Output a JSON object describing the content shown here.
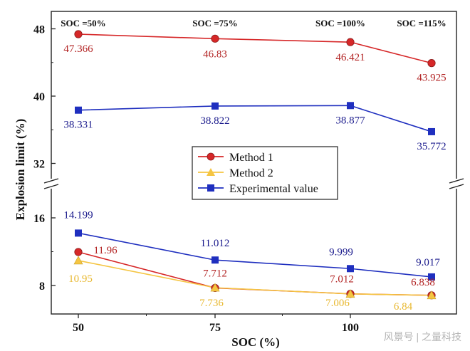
{
  "chart_data": {
    "type": "line",
    "xlabel": "SOC (%)",
    "ylabel": "Explosion limit (%)",
    "x": [
      50,
      75,
      100,
      115
    ],
    "x_ticks": [
      "50",
      "75",
      "100"
    ],
    "y_ticks_upper": [
      "48",
      "40",
      "32"
    ],
    "y_ticks_lower": [
      "16",
      "8"
    ],
    "axis_break": {
      "lower_range": [
        5,
        18
      ],
      "upper_range": [
        30,
        50
      ]
    },
    "soc_annotations": [
      "SOC =50%",
      "SOC =75%",
      "SOC =100%",
      "SOC =115%"
    ],
    "series": [
      {
        "name": "Method 1",
        "color": "#d62728",
        "marker": "circle",
        "upper_values": [
          47.366,
          46.83,
          46.421,
          43.925
        ],
        "upper_labels": [
          "47.366",
          "46.83",
          "46.421",
          "43.925"
        ],
        "lower_values": [
          11.96,
          7.712,
          7.012,
          6.838
        ],
        "lower_labels": [
          "11.96",
          "7.712",
          "7.012",
          "6.838"
        ]
      },
      {
        "name": "Method 2",
        "color": "#f5c542",
        "marker": "triangle",
        "lower_values": [
          10.95,
          7.736,
          7.006,
          6.84
        ],
        "lower_labels": [
          "10.95",
          "7.736",
          "7.006",
          "6.84"
        ]
      },
      {
        "name": "Experimental value",
        "color": "#1f2fbf",
        "marker": "square",
        "upper_values": [
          38.331,
          38.822,
          38.877,
          35.772
        ],
        "upper_labels": [
          "38.331",
          "38.822",
          "38.877",
          "35.772"
        ],
        "lower_values": [
          14.199,
          11.012,
          9.999,
          9.017
        ],
        "lower_labels": [
          "14.199",
          "11.012",
          "9.999",
          "9.017"
        ]
      }
    ],
    "legend_position": "center"
  },
  "watermark": "风景号 | 之量科技"
}
